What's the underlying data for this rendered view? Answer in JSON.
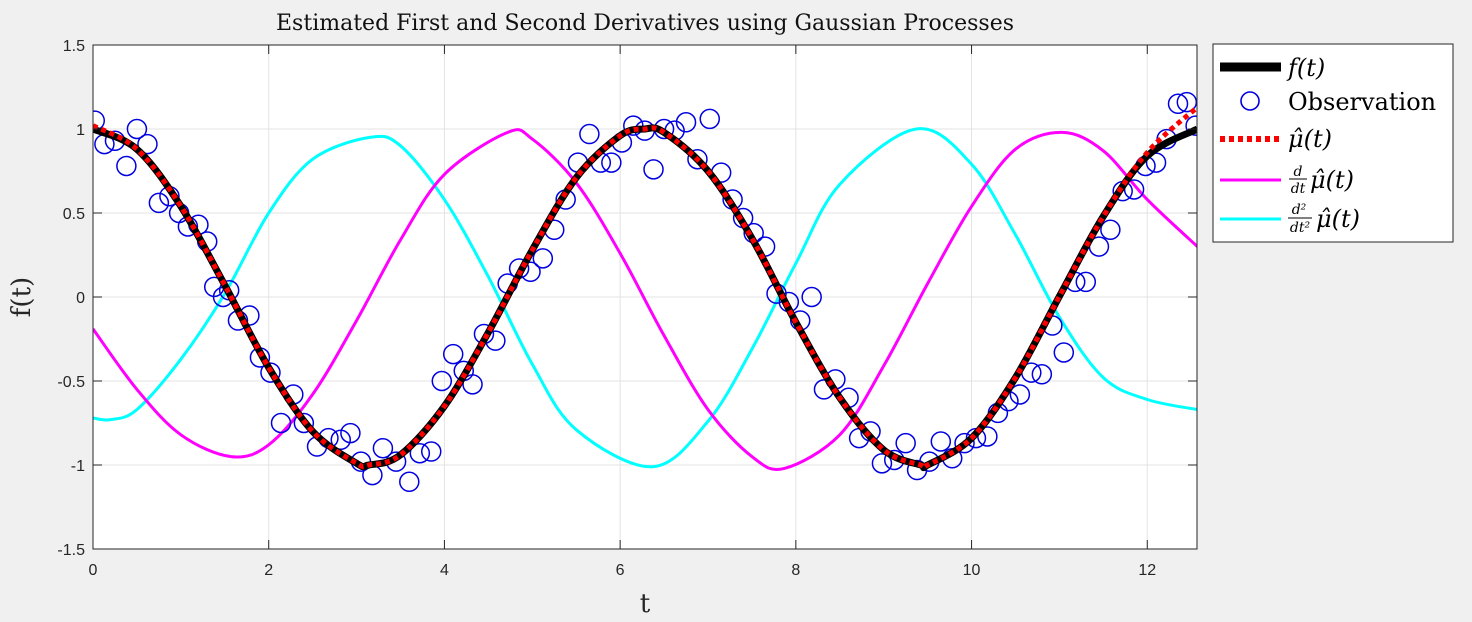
{
  "chart_data": {
    "type": "line",
    "title": "Estimated First and Second Derivatives using Gaussian Processes",
    "xlabel": "t",
    "ylabel": "f(t)",
    "xlim": [
      0,
      12.566
    ],
    "ylim": [
      -1.5,
      1.5
    ],
    "xticks": [
      0,
      2,
      4,
      6,
      8,
      10,
      12
    ],
    "xtick_labels": [
      "0",
      "2",
      "4",
      "6",
      "8",
      "10",
      "12"
    ],
    "yticks": [
      1.5,
      1,
      0.5,
      0,
      -0.5,
      -1,
      -1.5
    ],
    "ytick_labels": [
      "1.5",
      "1",
      "0.5",
      "0",
      "-0.5",
      "-1",
      "-1.5"
    ],
    "grid": true,
    "legend_position": "outside-top-right",
    "series": [
      {
        "name": "f(t)",
        "style": "line",
        "color": "#000000",
        "x": [
          0,
          0.5,
          1,
          1.5,
          2,
          2.5,
          3,
          3.14,
          3.5,
          4,
          4.5,
          5,
          5.5,
          6,
          6.28,
          6.5,
          7,
          7.5,
          8,
          8.5,
          9,
          9.42,
          9.5,
          10,
          10.5,
          11,
          11.5,
          12,
          12.57
        ],
        "y": [
          1,
          0.88,
          0.54,
          0.07,
          -0.42,
          -0.8,
          -0.99,
          -1,
          -0.94,
          -0.65,
          -0.21,
          0.28,
          0.71,
          0.96,
          1,
          0.98,
          0.75,
          0.35,
          -0.15,
          -0.6,
          -0.91,
          -1,
          -1,
          -0.84,
          -0.48,
          0.004,
          0.48,
          0.84,
          1
        ]
      },
      {
        "name": "Observation",
        "style": "markers",
        "color": "#0000e0",
        "x": [
          0.02,
          0.13,
          0.25,
          0.38,
          0.5,
          0.62,
          0.75,
          0.87,
          0.98,
          1.08,
          1.2,
          1.3,
          1.38,
          1.48,
          1.55,
          1.65,
          1.78,
          1.9,
          2.02,
          2.14,
          2.28,
          2.4,
          2.55,
          2.68,
          2.82,
          2.93,
          3.05,
          3.18,
          3.3,
          3.45,
          3.6,
          3.72,
          3.85,
          3.97,
          4.1,
          4.22,
          4.32,
          4.45,
          4.58,
          4.72,
          4.85,
          4.98,
          5.12,
          5.25,
          5.38,
          5.52,
          5.65,
          5.78,
          5.9,
          6.02,
          6.15,
          6.28,
          6.38,
          6.5,
          6.62,
          6.75,
          6.88,
          7.02,
          7.15,
          7.28,
          7.4,
          7.52,
          7.65,
          7.78,
          7.92,
          8.05,
          8.18,
          8.32,
          8.45,
          8.6,
          8.72,
          8.85,
          8.98,
          9.12,
          9.25,
          9.38,
          9.52,
          9.65,
          9.78,
          9.92,
          10.05,
          10.18,
          10.3,
          10.42,
          10.55,
          10.68,
          10.8,
          10.92,
          11.05,
          11.18,
          11.3,
          11.45,
          11.58,
          11.72,
          11.85,
          11.98,
          12.1,
          12.22,
          12.35,
          12.45,
          12.55
        ],
        "y": [
          1.05,
          0.91,
          0.93,
          0.78,
          1.0,
          0.91,
          0.56,
          0.6,
          0.5,
          0.42,
          0.43,
          0.33,
          0.06,
          0.0,
          0.04,
          -0.14,
          -0.11,
          -0.36,
          -0.45,
          -0.75,
          -0.58,
          -0.75,
          -0.89,
          -0.84,
          -0.85,
          -0.81,
          -0.98,
          -1.06,
          -0.9,
          -0.98,
          -1.1,
          -0.93,
          -0.92,
          -0.5,
          -0.34,
          -0.44,
          -0.52,
          -0.22,
          -0.26,
          0.08,
          0.17,
          0.15,
          0.23,
          0.4,
          0.58,
          0.8,
          0.97,
          0.8,
          0.8,
          0.92,
          1.02,
          0.99,
          0.76,
          1.0,
          0.99,
          1.04,
          0.82,
          1.06,
          0.74,
          0.58,
          0.47,
          0.38,
          0.3,
          0.02,
          -0.03,
          -0.14,
          0.0,
          -0.55,
          -0.49,
          -0.6,
          -0.84,
          -0.8,
          -0.99,
          -0.97,
          -0.87,
          -1.03,
          -0.98,
          -0.86,
          -0.96,
          -0.87,
          -0.84,
          -0.83,
          -0.69,
          -0.62,
          -0.58,
          -0.45,
          -0.46,
          -0.17,
          -0.33,
          0.09,
          0.09,
          0.3,
          0.4,
          0.63,
          0.64,
          0.78,
          0.8,
          0.94,
          1.15,
          1.16,
          1.02
        ]
      },
      {
        "name": "μ̂(t)",
        "style": "dotted",
        "color": "#ff0000",
        "x": [
          0,
          0.5,
          1,
          1.5,
          2,
          2.5,
          3,
          3.14,
          3.5,
          4,
          4.5,
          5,
          5.5,
          6,
          6.28,
          6.5,
          7,
          7.5,
          8,
          8.5,
          9,
          9.42,
          9.5,
          10,
          10.5,
          11,
          11.5,
          12,
          12.57
        ],
        "y": [
          1.02,
          0.88,
          0.54,
          0.07,
          -0.42,
          -0.8,
          -0.99,
          -1,
          -0.94,
          -0.65,
          -0.21,
          0.28,
          0.71,
          0.96,
          1,
          0.98,
          0.75,
          0.35,
          -0.15,
          -0.6,
          -0.91,
          -1,
          -1,
          -0.84,
          -0.48,
          0.004,
          0.48,
          0.86,
          1.13
        ]
      },
      {
        "name": "d/dt μ̂(t)",
        "style": "line",
        "color": "#ff00ff",
        "x": [
          0,
          0.5,
          1,
          1.57,
          2,
          2.5,
          3,
          3.5,
          4,
          4.72,
          5,
          5.5,
          6,
          6.5,
          7,
          7.5,
          7.87,
          8.5,
          9,
          9.5,
          10,
          10.5,
          11.03,
          11.5,
          12,
          12.57
        ],
        "y": [
          -0.19,
          -0.55,
          -0.82,
          -0.95,
          -0.88,
          -0.58,
          -0.14,
          0.34,
          0.73,
          0.98,
          0.94,
          0.68,
          0.26,
          -0.23,
          -0.67,
          -0.95,
          -1.02,
          -0.82,
          -0.41,
          0.08,
          0.54,
          0.88,
          0.98,
          0.87,
          0.58,
          0.3
        ]
      },
      {
        "name": "d²/dt² μ̂(t)",
        "style": "line",
        "color": "#00ffff",
        "x": [
          0,
          0.2,
          0.5,
          1,
          1.5,
          2,
          2.5,
          3.15,
          3.5,
          4,
          4.5,
          5,
          5.5,
          6.37,
          7,
          7.5,
          8,
          8.5,
          9.37,
          10,
          10.5,
          11,
          11.5,
          12,
          12.57
        ],
        "y": [
          -0.72,
          -0.73,
          -0.67,
          -0.37,
          0.02,
          0.5,
          0.82,
          0.95,
          0.9,
          0.58,
          0.12,
          -0.4,
          -0.79,
          -1.01,
          -0.74,
          -0.31,
          0.2,
          0.67,
          1.0,
          0.79,
          0.37,
          -0.12,
          -0.48,
          -0.61,
          -0.67
        ]
      }
    ],
    "legend": {
      "entries": [
        {
          "label": "f(t)",
          "swatch": "line-thick",
          "color": "#000000"
        },
        {
          "label": "Observation",
          "swatch": "circle",
          "color": "#0000e0"
        },
        {
          "label": "μ̂(t)",
          "swatch": "dotted",
          "color": "#ff0000"
        },
        {
          "num": "d",
          "den": "dt",
          "label": "μ̂(t)",
          "swatch": "line",
          "color": "#ff00ff"
        },
        {
          "num": "d²",
          "den": "dt²",
          "label": "μ̂(t)",
          "swatch": "line",
          "color": "#00ffff"
        }
      ]
    }
  }
}
